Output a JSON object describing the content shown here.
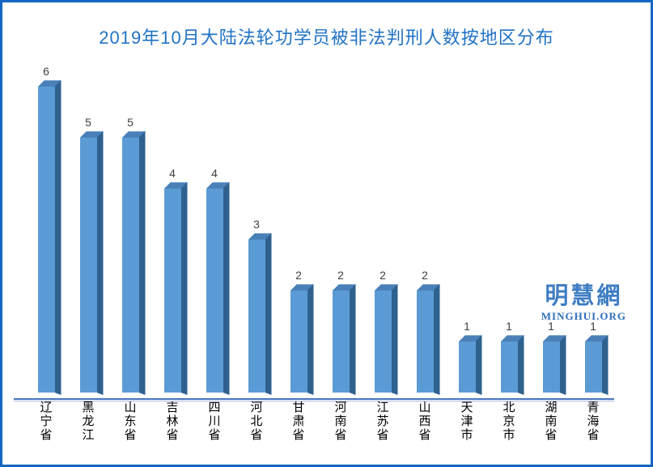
{
  "frame": {
    "border_color": "#1467C2"
  },
  "title": {
    "text": "2019年10月大陆法轮功学员被非法判刑人数按地区分布",
    "color": "#2273C4"
  },
  "chart_data": {
    "type": "bar",
    "style": "3d-column",
    "title": "2019年10月大陆法轮功学员被非法判刑人数按地区分布",
    "categories": [
      "辽宁省",
      "黑龙江",
      "山东省",
      "吉林省",
      "四川省",
      "河北省",
      "甘肃省",
      "河南省",
      "江苏省",
      "山西省",
      "天津市",
      "北京市",
      "湖南省",
      "青海省"
    ],
    "values": [
      6,
      5,
      5,
      4,
      4,
      3,
      2,
      2,
      2,
      2,
      1,
      1,
      1,
      1
    ],
    "xlabel": "",
    "ylabel": "",
    "ylim": [
      0,
      6
    ],
    "grid": false,
    "legend": "none",
    "value_labels_shown": true,
    "colors": {
      "bar_front": "#5B9BD5",
      "bar_side": "#2F618F",
      "bar_top": "#4A80B8",
      "axis_line": "#4673C2",
      "value_label": "#3F3F3F",
      "category_label": "#000000"
    }
  },
  "watermark": {
    "cjk": "明慧網",
    "latin": "MINGHUI.ORG",
    "color": "#3E7DC3"
  }
}
